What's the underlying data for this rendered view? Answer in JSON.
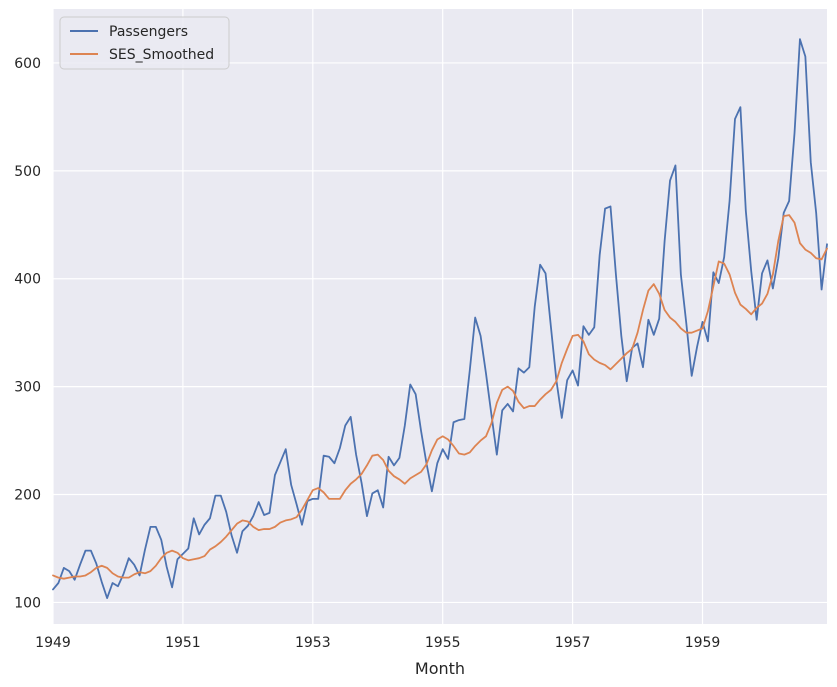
{
  "chart_data": {
    "type": "line",
    "xlabel": "Month",
    "ylabel": "",
    "x_axis_type": "date",
    "xlim": [
      "1949-01",
      "1960-12"
    ],
    "ylim": [
      80,
      650
    ],
    "x_tick_labels": [
      "1949",
      "1951",
      "1953",
      "1955",
      "1957",
      "1959"
    ],
    "y_ticks": [
      100,
      200,
      300,
      400,
      500,
      600
    ],
    "grid": true,
    "legend_position": "top-left",
    "colors": {
      "plot_background": "#eaeaf2",
      "grid": "#ffffff",
      "passengers": "#4c72b0",
      "ses_smoothed": "#dd8452"
    },
    "x": [
      "1949-01",
      "1949-02",
      "1949-03",
      "1949-04",
      "1949-05",
      "1949-06",
      "1949-07",
      "1949-08",
      "1949-09",
      "1949-10",
      "1949-11",
      "1949-12",
      "1950-01",
      "1950-02",
      "1950-03",
      "1950-04",
      "1950-05",
      "1950-06",
      "1950-07",
      "1950-08",
      "1950-09",
      "1950-10",
      "1950-11",
      "1950-12",
      "1951-01",
      "1951-02",
      "1951-03",
      "1951-04",
      "1951-05",
      "1951-06",
      "1951-07",
      "1951-08",
      "1951-09",
      "1951-10",
      "1951-11",
      "1951-12",
      "1952-01",
      "1952-02",
      "1952-03",
      "1952-04",
      "1952-05",
      "1952-06",
      "1952-07",
      "1952-08",
      "1952-09",
      "1952-10",
      "1952-11",
      "1952-12",
      "1953-01",
      "1953-02",
      "1953-03",
      "1953-04",
      "1953-05",
      "1953-06",
      "1953-07",
      "1953-08",
      "1953-09",
      "1953-10",
      "1953-11",
      "1953-12",
      "1954-01",
      "1954-02",
      "1954-03",
      "1954-04",
      "1954-05",
      "1954-06",
      "1954-07",
      "1954-08",
      "1954-09",
      "1954-10",
      "1954-11",
      "1954-12",
      "1955-01",
      "1955-02",
      "1955-03",
      "1955-04",
      "1955-05",
      "1955-06",
      "1955-07",
      "1955-08",
      "1955-09",
      "1955-10",
      "1955-11",
      "1955-12",
      "1956-01",
      "1956-02",
      "1956-03",
      "1956-04",
      "1956-05",
      "1956-06",
      "1956-07",
      "1956-08",
      "1956-09",
      "1956-10",
      "1956-11",
      "1956-12",
      "1957-01",
      "1957-02",
      "1957-03",
      "1957-04",
      "1957-05",
      "1957-06",
      "1957-07",
      "1957-08",
      "1957-09",
      "1957-10",
      "1957-11",
      "1957-12",
      "1958-01",
      "1958-02",
      "1958-03",
      "1958-04",
      "1958-05",
      "1958-06",
      "1958-07",
      "1958-08",
      "1958-09",
      "1958-10",
      "1958-11",
      "1958-12",
      "1959-01",
      "1959-02",
      "1959-03",
      "1959-04",
      "1959-05",
      "1959-06",
      "1959-07",
      "1959-08",
      "1959-09",
      "1959-10",
      "1959-11",
      "1959-12",
      "1960-01",
      "1960-02",
      "1960-03",
      "1960-04",
      "1960-05",
      "1960-06",
      "1960-07",
      "1960-08",
      "1960-09",
      "1960-10",
      "1960-11",
      "1960-12"
    ],
    "series": [
      {
        "name": "Passengers",
        "values": [
          112,
          118,
          132,
          129,
          121,
          135,
          148,
          148,
          136,
          119,
          104,
          118,
          115,
          126,
          141,
          135,
          125,
          149,
          170,
          170,
          158,
          133,
          114,
          140,
          145,
          150,
          178,
          163,
          172,
          178,
          199,
          199,
          184,
          162,
          146,
          166,
          171,
          180,
          193,
          181,
          183,
          218,
          230,
          242,
          209,
          191,
          172,
          194,
          196,
          196,
          236,
          235,
          229,
          243,
          264,
          272,
          237,
          211,
          180,
          201,
          204,
          188,
          235,
          227,
          234,
          264,
          302,
          293,
          259,
          229,
          203,
          229,
          242,
          233,
          267,
          269,
          270,
          315,
          364,
          347,
          312,
          274,
          237,
          278,
          284,
          277,
          317,
          313,
          318,
          374,
          413,
          405,
          355,
          306,
          271,
          306,
          315,
          301,
          356,
          348,
          355,
          422,
          465,
          467,
          404,
          347,
          305,
          336,
          340,
          318,
          362,
          348,
          363,
          435,
          491,
          505,
          404,
          359,
          310,
          337,
          360,
          342,
          406,
          396,
          420,
          472,
          548,
          559,
          463,
          407,
          362,
          405,
          417,
          391,
          419,
          461,
          472,
          535,
          622,
          606,
          508,
          461,
          390,
          432
        ]
      },
      {
        "name": "SES_Smoothed",
        "values": [
          125,
          123,
          122,
          123,
          124,
          124,
          125,
          128,
          132,
          134,
          132,
          127,
          124,
          123,
          123,
          126,
          128,
          127,
          129,
          134,
          141,
          146,
          148,
          146,
          141,
          139,
          140,
          141,
          143,
          149,
          152,
          156,
          161,
          167,
          173,
          176,
          175,
          170,
          167,
          168,
          168,
          170,
          174,
          176,
          177,
          179,
          186,
          195,
          204,
          206,
          202,
          196,
          196,
          196,
          204,
          210,
          214,
          219,
          227,
          236,
          237,
          232,
          222,
          217,
          214,
          210,
          215,
          218,
          221,
          228,
          241,
          251,
          254,
          251,
          245,
          238,
          237,
          239,
          245,
          250,
          254,
          266,
          285,
          297,
          300,
          296,
          286,
          280,
          282,
          282,
          288,
          293,
          297,
          305,
          322,
          335,
          347,
          348,
          342,
          330,
          325,
          322,
          320,
          316,
          321,
          326,
          331,
          335,
          350,
          371,
          389,
          395,
          386,
          371,
          364,
          360,
          354,
          350,
          350,
          352,
          354,
          370,
          393,
          416,
          414,
          404,
          387,
          376,
          372,
          367,
          373,
          377,
          386,
          404,
          435,
          458,
          459,
          452,
          433,
          427,
          424,
          419,
          418,
          428
        ]
      }
    ]
  }
}
